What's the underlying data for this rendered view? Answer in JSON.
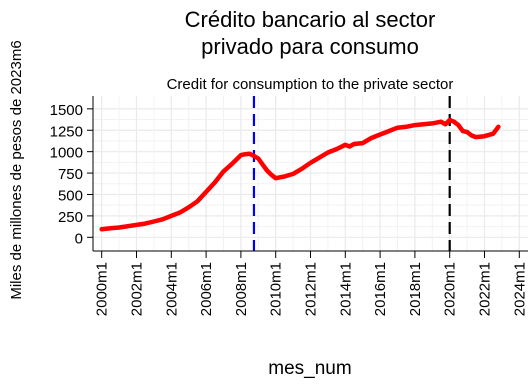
{
  "chart_data": {
    "type": "line",
    "title": "Crédito bancario al sector\nprivado para consumo",
    "subtitle": "Credit for consumption to the private sector",
    "xlabel": "mes_num",
    "ylabel": "Miles de millones de pesos de 2023m6",
    "x_ticks": [
      "2000m1",
      "2002m1",
      "2004m1",
      "2006m1",
      "2008m1",
      "2010m1",
      "2012m1",
      "2014m1",
      "2016m1",
      "2018m1",
      "2020m1",
      "2022m1",
      "2024m1"
    ],
    "y_ticks": [
      "0",
      "250",
      "500",
      "750",
      "1000",
      "1250",
      "1500"
    ],
    "xlim": [
      1999.5,
      2024.5
    ],
    "ylim": [
      -160,
      1650
    ],
    "grid": true,
    "series": [
      {
        "color": "#ff0000",
        "x": [
          2000.0,
          2000.5,
          2001.0,
          2001.5,
          2002.0,
          2002.5,
          2003.0,
          2003.5,
          2004.0,
          2004.5,
          2005.0,
          2005.5,
          2006.0,
          2006.5,
          2007.0,
          2007.5,
          2008.0,
          2008.25,
          2008.5,
          2008.75,
          2009.0,
          2009.25,
          2009.5,
          2009.75,
          2010.0,
          2010.5,
          2011.0,
          2011.5,
          2012.0,
          2012.5,
          2013.0,
          2013.5,
          2014.0,
          2014.25,
          2014.5,
          2015.0,
          2015.5,
          2016.0,
          2016.5,
          2017.0,
          2017.5,
          2018.0,
          2018.5,
          2019.0,
          2019.5,
          2019.75,
          2020.0,
          2020.25,
          2020.5,
          2020.75,
          2021.0,
          2021.25,
          2021.5,
          2022.0,
          2022.5,
          2022.8
        ],
        "y": [
          95,
          105,
          115,
          130,
          145,
          160,
          185,
          210,
          250,
          290,
          350,
          420,
          530,
          640,
          770,
          860,
          960,
          970,
          975,
          950,
          920,
          850,
          780,
          730,
          690,
          710,
          740,
          800,
          870,
          930,
          990,
          1030,
          1080,
          1060,
          1090,
          1100,
          1160,
          1200,
          1240,
          1280,
          1290,
          1310,
          1320,
          1330,
          1350,
          1320,
          1370,
          1350,
          1310,
          1240,
          1230,
          1190,
          1170,
          1180,
          1210,
          1290
        ]
      }
    ],
    "vlines": [
      {
        "x": 2008.75,
        "color": "#0000ff",
        "style": "dashed"
      },
      {
        "x": 2020.0,
        "color": "#000000",
        "style": "dashed"
      }
    ]
  }
}
